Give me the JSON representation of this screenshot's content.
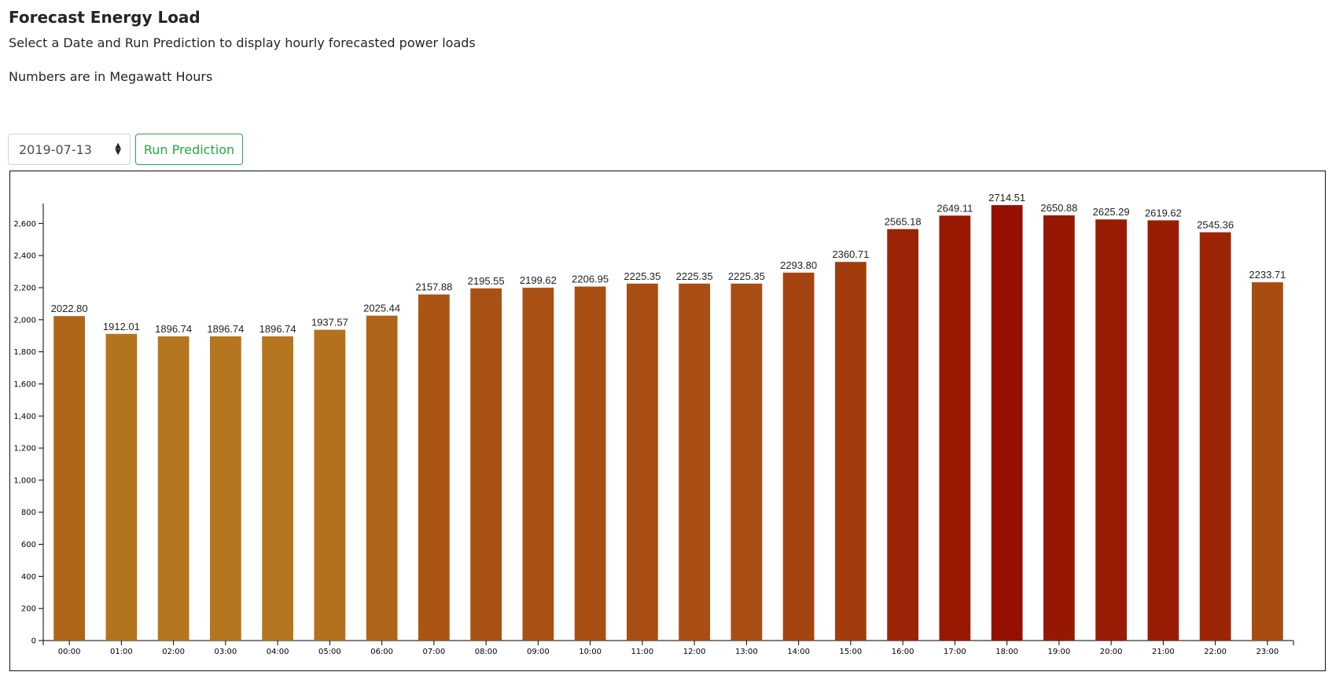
{
  "header": {
    "title": "Forecast Energy Load",
    "subtitle": "Select a Date and Run Prediction to display hourly forecasted power loads",
    "units_note": "Numbers are in Megawatt Hours"
  },
  "controls": {
    "date_value": "2019-07-13",
    "run_label": "Run Prediction"
  },
  "chart_data": {
    "type": "bar",
    "categories": [
      "00:00",
      "01:00",
      "02:00",
      "03:00",
      "04:00",
      "05:00",
      "06:00",
      "07:00",
      "08:00",
      "09:00",
      "10:00",
      "11:00",
      "12:00",
      "13:00",
      "14:00",
      "15:00",
      "16:00",
      "17:00",
      "18:00",
      "19:00",
      "20:00",
      "21:00",
      "22:00",
      "23:00"
    ],
    "values": [
      2022.8,
      1912.01,
      1896.74,
      1896.74,
      1896.74,
      1937.57,
      2025.44,
      2157.88,
      2195.55,
      2199.62,
      2206.95,
      2225.35,
      2225.35,
      2225.35,
      2293.8,
      2360.71,
      2565.18,
      2649.11,
      2714.51,
      2650.88,
      2625.29,
      2619.62,
      2545.36,
      2233.71
    ],
    "value_labels": [
      "2022.80",
      "1912.01",
      "1896.74",
      "1896.74",
      "1896.74",
      "1937.57",
      "2025.44",
      "2157.88",
      "2195.55",
      "2199.62",
      "2206.95",
      "2225.35",
      "2225.35",
      "2225.35",
      "2293.80",
      "2360.71",
      "2565.18",
      "2649.11",
      "2714.51",
      "2650.88",
      "2625.29",
      "2619.62",
      "2545.36",
      "2233.71"
    ],
    "y_ticks": [
      "0",
      "200",
      "400",
      "600",
      "800",
      "1,000",
      "1,200",
      "1,400",
      "1,600",
      "1,800",
      "2,000",
      "2,200",
      "2,400",
      "2,600"
    ],
    "ylim": [
      0,
      2714.51
    ],
    "grid": false,
    "color_low": "#b5761f",
    "color_high": "#951000"
  }
}
